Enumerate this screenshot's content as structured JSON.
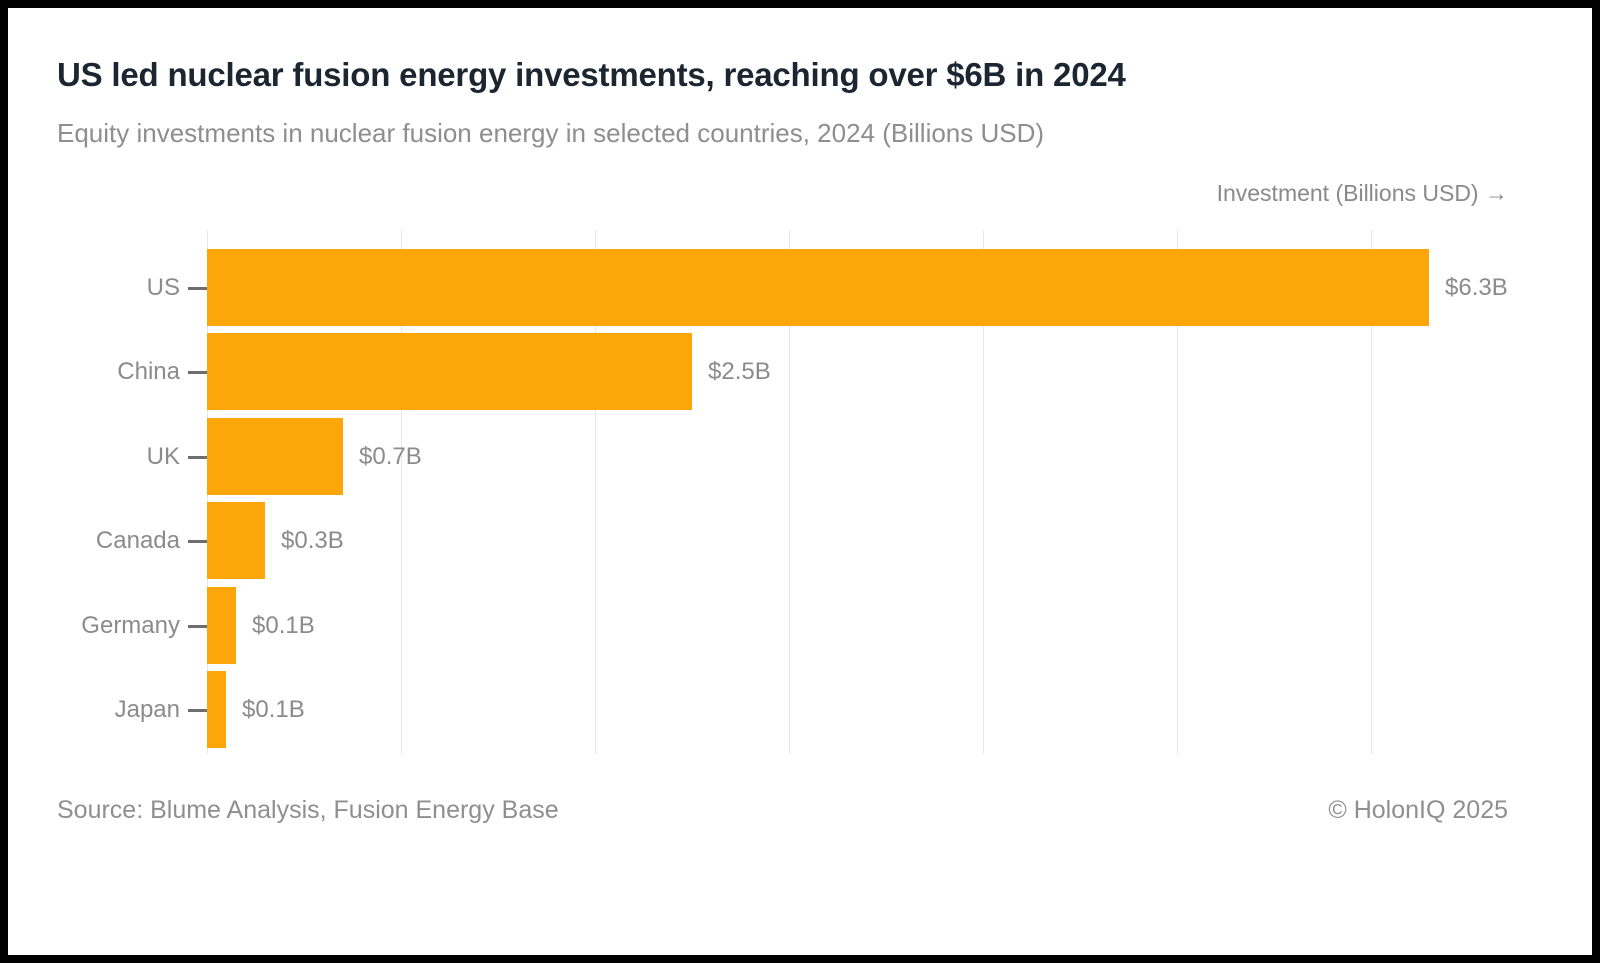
{
  "window": {
    "frame_color": "#000000",
    "card_background": "#ffffff"
  },
  "header": {
    "title": "US led nuclear fusion energy investments, reaching over $6B in 2024",
    "subtitle": "Equity investments in nuclear fusion energy in selected countries, 2024 (Billions USD)"
  },
  "chart_data": {
    "type": "bar",
    "orientation": "horizontal",
    "axis_label": "Investment (Billions USD) →",
    "categories": [
      "US",
      "China",
      "UK",
      "Canada",
      "Germany",
      "Japan"
    ],
    "values": [
      6.3,
      2.5,
      0.7,
      0.3,
      0.15,
      0.1
    ],
    "value_labels": [
      "$6.3B",
      "$2.5B",
      "$0.7B",
      "$0.3B",
      "$0.1B",
      "$0.1B"
    ],
    "xlim": [
      0,
      6.6
    ],
    "gridline_values": [
      0,
      1,
      2,
      3,
      4,
      5,
      6
    ],
    "grid": true,
    "legend": "none",
    "bar_color": "#fda60a",
    "label_color": "#8b8b8b",
    "grid_color": "#e7e7e7",
    "tick_color": "#6e6e6e"
  },
  "footer": {
    "source": "Source: Blume Analysis, Fusion Energy Base",
    "copyright": "© HolonIQ 2025"
  }
}
